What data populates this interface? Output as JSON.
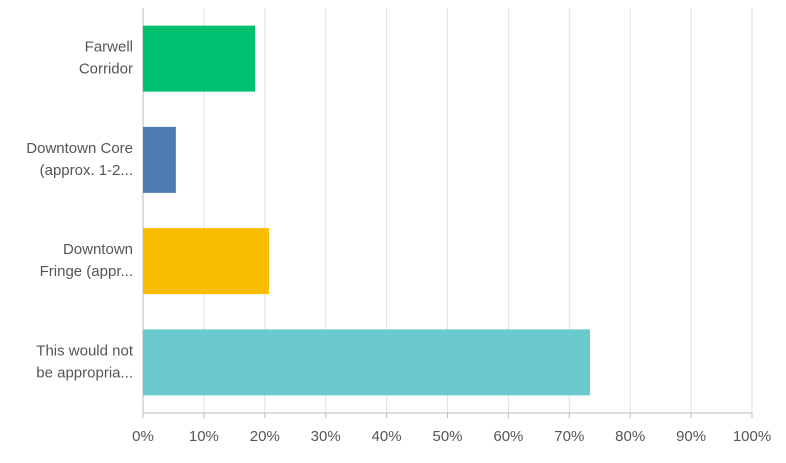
{
  "chart_data": {
    "type": "hbar",
    "categories": [
      [
        "Farwell",
        "Corridor"
      ],
      [
        "Downtown Core",
        "(approx. 1-2..."
      ],
      [
        "Downtown",
        "Fringe (appr..."
      ],
      [
        "This would not",
        "be appropria..."
      ]
    ],
    "values": [
      18.4,
      5.4,
      20.7,
      73.4
    ],
    "colors": [
      "#00bf6f",
      "#507cb6",
      "#f9be00",
      "#6bc8cd"
    ],
    "xlim": [
      0,
      100
    ],
    "xticks": [
      {
        "value": 0,
        "label": "0%"
      },
      {
        "value": 10,
        "label": "10%"
      },
      {
        "value": 20,
        "label": "20%"
      },
      {
        "value": 30,
        "label": "30%"
      },
      {
        "value": 40,
        "label": "40%"
      },
      {
        "value": 50,
        "label": "50%"
      },
      {
        "value": 60,
        "label": "60%"
      },
      {
        "value": 70,
        "label": "70%"
      },
      {
        "value": 80,
        "label": "80%"
      },
      {
        "value": 90,
        "label": "90%"
      },
      {
        "value": 100,
        "label": "100%"
      }
    ],
    "grid": true
  }
}
